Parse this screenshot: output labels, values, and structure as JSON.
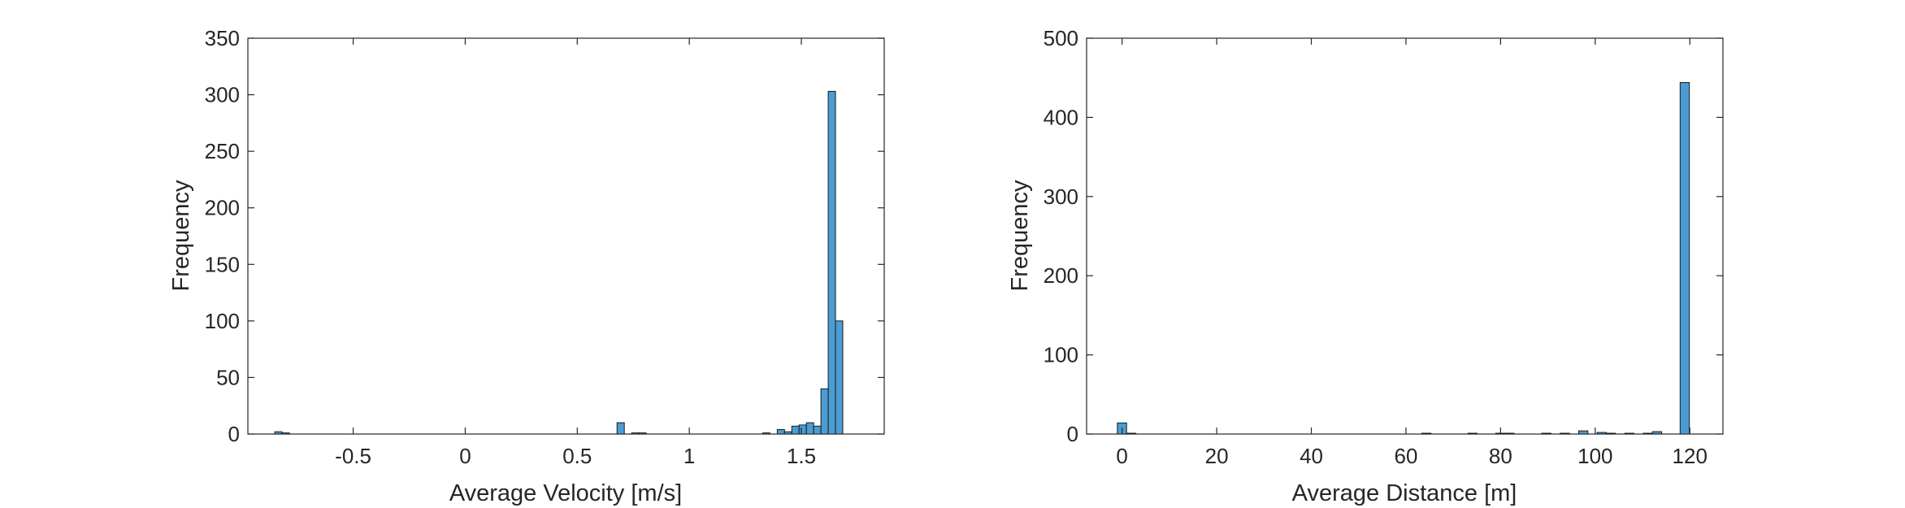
{
  "chart_data": [
    {
      "type": "bar",
      "subtype": "histogram",
      "xlabel": "Average Velocity [m/s]",
      "ylabel": "Frequency",
      "xlim": [
        -0.97,
        1.87
      ],
      "ylim": [
        0,
        350
      ],
      "xticks": [
        -0.5,
        0,
        0.5,
        1,
        1.5
      ],
      "xtick_labels": [
        "-0.5",
        "0",
        "0.5",
        "1",
        "1.5"
      ],
      "yticks": [
        0,
        50,
        100,
        150,
        200,
        250,
        300,
        350
      ],
      "ytick_labels": [
        "0",
        "50",
        "100",
        "150",
        "200",
        "250",
        "300",
        "350"
      ],
      "bin_edges_start": -0.85,
      "bin_width": 0.0325,
      "values": [
        2,
        1,
        0,
        0,
        0,
        0,
        0,
        0,
        0,
        0,
        0,
        0,
        0,
        0,
        0,
        0,
        0,
        0,
        0,
        0,
        0,
        0,
        0,
        0,
        0,
        0,
        0,
        0,
        0,
        0,
        0,
        0,
        0,
        0,
        0,
        0,
        0,
        0,
        0,
        0,
        0,
        0,
        0,
        0,
        0,
        0,
        0,
        10,
        0,
        1,
        1,
        0,
        0,
        0,
        0,
        0,
        0,
        0,
        0,
        0,
        0,
        0,
        0,
        0,
        0,
        0,
        0,
        1,
        0,
        4,
        2,
        7,
        8,
        10,
        7,
        40,
        303,
        100
      ],
      "bar_color": "#4b9cd3",
      "edge_color": "#1a1a1a",
      "grid": false
    },
    {
      "type": "bar",
      "subtype": "histogram",
      "xlabel": "Average Distance [m]",
      "ylabel": "Frequency",
      "xlim": [
        -7.5,
        127
      ],
      "ylim": [
        0,
        500
      ],
      "xticks": [
        0,
        20,
        40,
        60,
        80,
        100,
        120
      ],
      "xtick_labels": [
        "0",
        "20",
        "40",
        "60",
        "80",
        "100",
        "120"
      ],
      "yticks": [
        0,
        100,
        200,
        300,
        400,
        500
      ],
      "ytick_labels": [
        "0",
        "100",
        "200",
        "300",
        "400",
        "500"
      ],
      "bin_edges_start": -1.0,
      "bin_width": 1.95,
      "values": [
        14,
        1,
        0,
        0,
        0,
        0,
        0,
        0,
        0,
        0,
        0,
        0,
        0,
        0,
        0,
        0,
        0,
        0,
        0,
        0,
        0,
        0,
        0,
        0,
        0,
        0,
        0,
        0,
        0,
        0,
        0,
        0,
        0,
        1,
        0,
        0,
        0,
        0,
        1,
        0,
        0,
        1,
        1,
        0,
        0,
        0,
        1,
        0,
        1,
        0,
        4,
        0,
        2,
        1,
        0,
        1,
        0,
        1,
        3,
        0,
        0,
        444
      ],
      "bar_color": "#4b9cd3",
      "edge_color": "#1a1a1a",
      "grid": false
    }
  ]
}
